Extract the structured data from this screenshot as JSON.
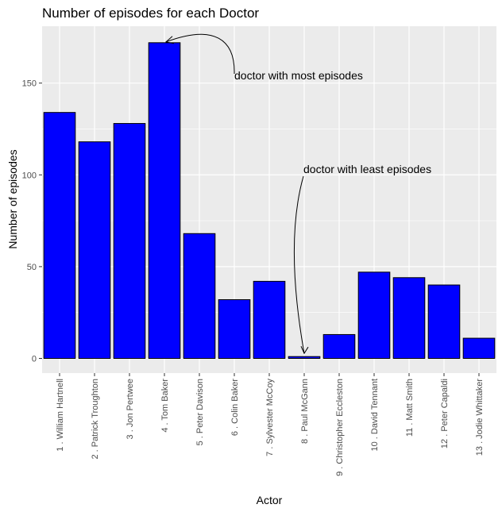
{
  "chart_data": {
    "type": "bar",
    "title": "Number of episodes for each Doctor",
    "xlabel": "Actor",
    "ylabel": "Number of episodes",
    "categories": [
      "1 . William Hartnell",
      "2 . Patrick Troughton",
      "3 . Jon Pertwee",
      "4 . Tom Baker",
      "5 . Peter Davison",
      "6 . Colin Baker",
      "7 . Sylvester McCoy",
      "8 . Paul McGann",
      "9 . Christopher Eccleston",
      "10 . David Tennant",
      "11 . Matt Smith",
      "12 . Peter Capaldi",
      "13 . Jodie Whittaker"
    ],
    "values": [
      134,
      118,
      128,
      172,
      68,
      32,
      42,
      1,
      13,
      47,
      44,
      40,
      11
    ],
    "ylim": [
      -8,
      181
    ],
    "yticks": [
      0,
      50,
      100,
      150
    ],
    "grid": true,
    "bar_color": "#0000ff",
    "bar_outline": "#000000",
    "panel_background": "#ebebeb",
    "annotations": [
      {
        "text": "doctor with most episodes",
        "target_index": 3,
        "target_value": 172
      },
      {
        "text": "doctor with least episodes",
        "target_index": 7,
        "target_value": 1
      }
    ]
  }
}
